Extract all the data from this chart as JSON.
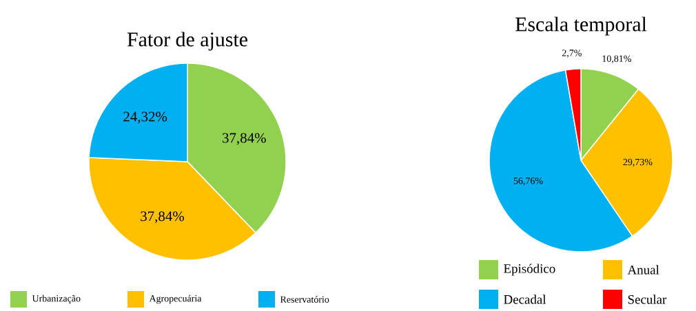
{
  "chart_data": [
    {
      "type": "pie",
      "title": "Fator de ajuste",
      "categories": [
        "Urbanização",
        "Agropecuária",
        "Reservatório"
      ],
      "values": [
        37.84,
        37.84,
        24.32
      ],
      "colors": [
        "#92d050",
        "#ffc000",
        "#00b0f0"
      ],
      "value_labels": [
        "37,84%",
        "37,84%",
        "24,32%"
      ],
      "legend": "bottom"
    },
    {
      "type": "pie",
      "title": "Escala temporal",
      "categories": [
        "Episódico",
        "Anual",
        "Decadal",
        "Secular"
      ],
      "values": [
        10.81,
        29.73,
        56.76,
        2.7
      ],
      "colors": [
        "#92d050",
        "#ffc000",
        "#00b0f0",
        "#ff0000"
      ],
      "value_labels": [
        "10,81%",
        "29,73%",
        "56,76%",
        "2,7%"
      ],
      "legend": "bottom"
    }
  ]
}
